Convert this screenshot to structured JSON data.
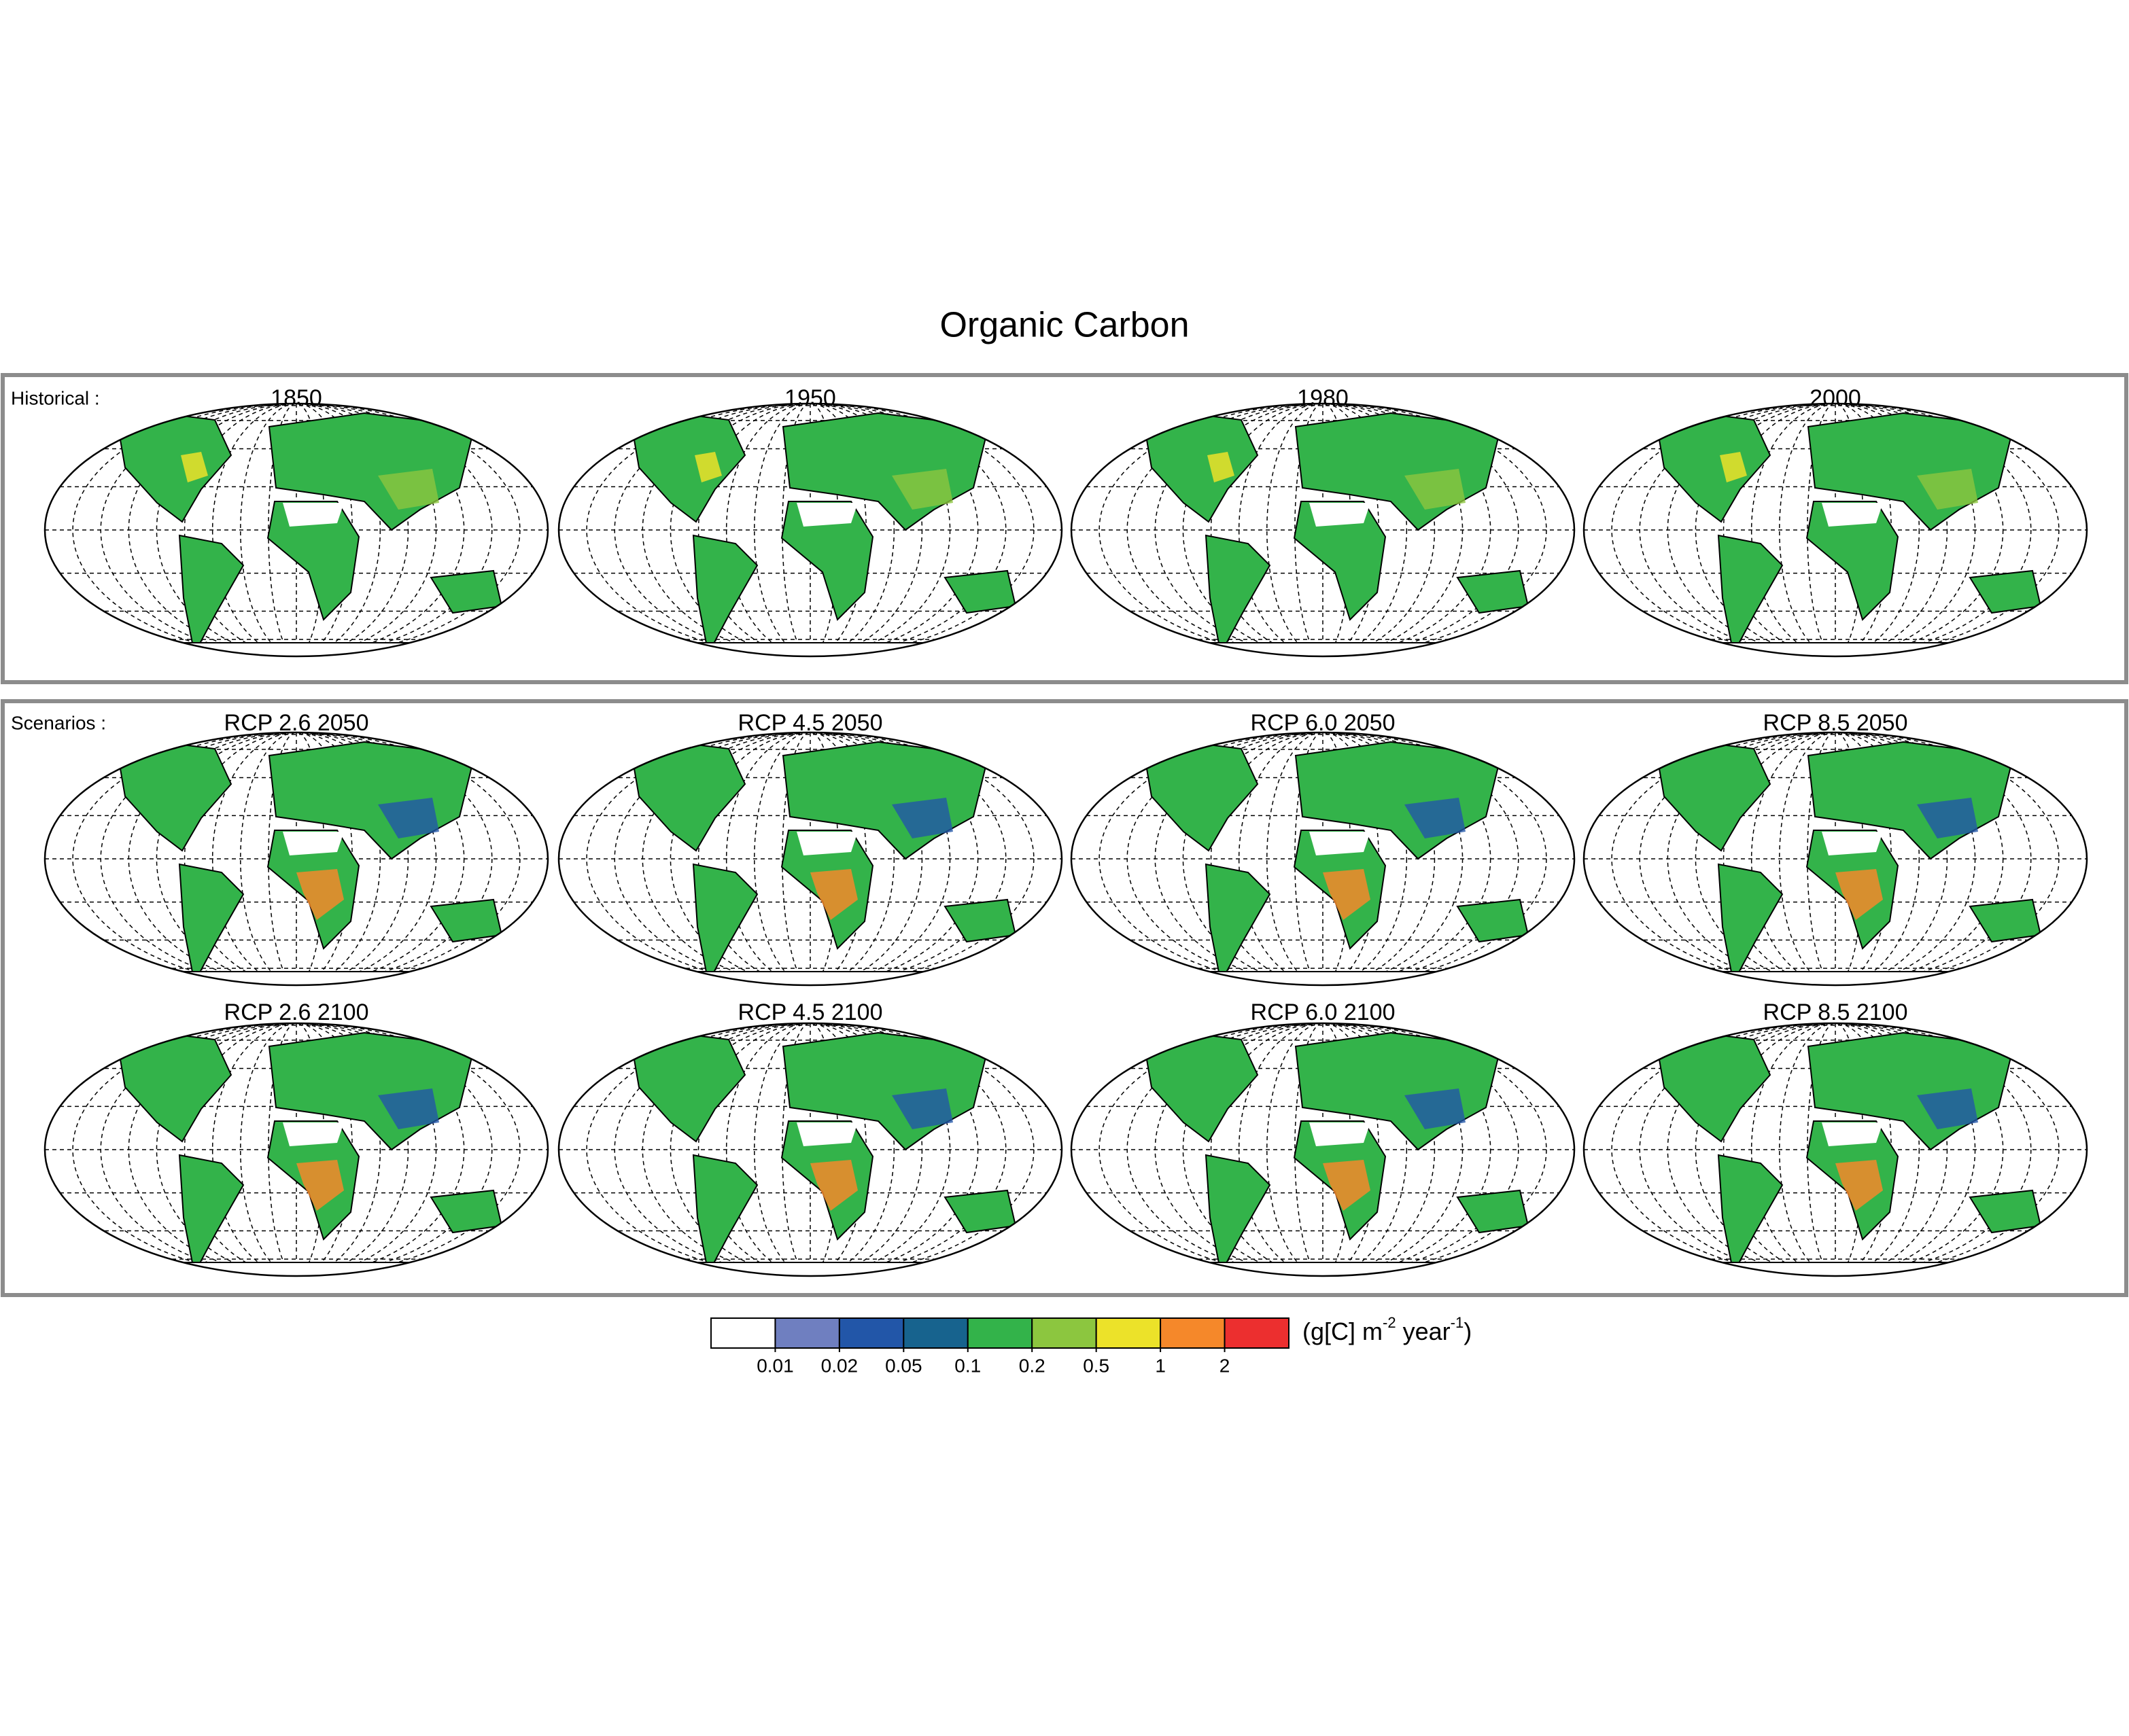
{
  "title": "Organic Carbon",
  "groups": [
    {
      "label": "Historical :",
      "maps": [
        "1850",
        "1950",
        "1980",
        "2000"
      ]
    },
    {
      "label": "Scenarios :",
      "maps": [
        "RCP 2.6 2050",
        "RCP 4.5 2050",
        "RCP 6.0 2050",
        "RCP 8.5 2050",
        "RCP 2.6 2100",
        "RCP 4.5 2100",
        "RCP 6.0 2100",
        "RCP 8.5 2100"
      ]
    }
  ],
  "colorbar": {
    "colors": [
      "#ffffff",
      "#6f7fc0",
      "#2256a8",
      "#17638e",
      "#33b34a",
      "#8cc63f",
      "#ece229",
      "#f5882a",
      "#ec2f2f"
    ],
    "ticks": [
      0.01,
      0.02,
      0.05,
      0.1,
      0.2,
      0.5,
      1,
      2
    ],
    "unit": {
      "start": "(g[C] m",
      "sup1": "-2",
      "middle": " year",
      "sup2": "-1",
      "end": ")"
    }
  }
}
